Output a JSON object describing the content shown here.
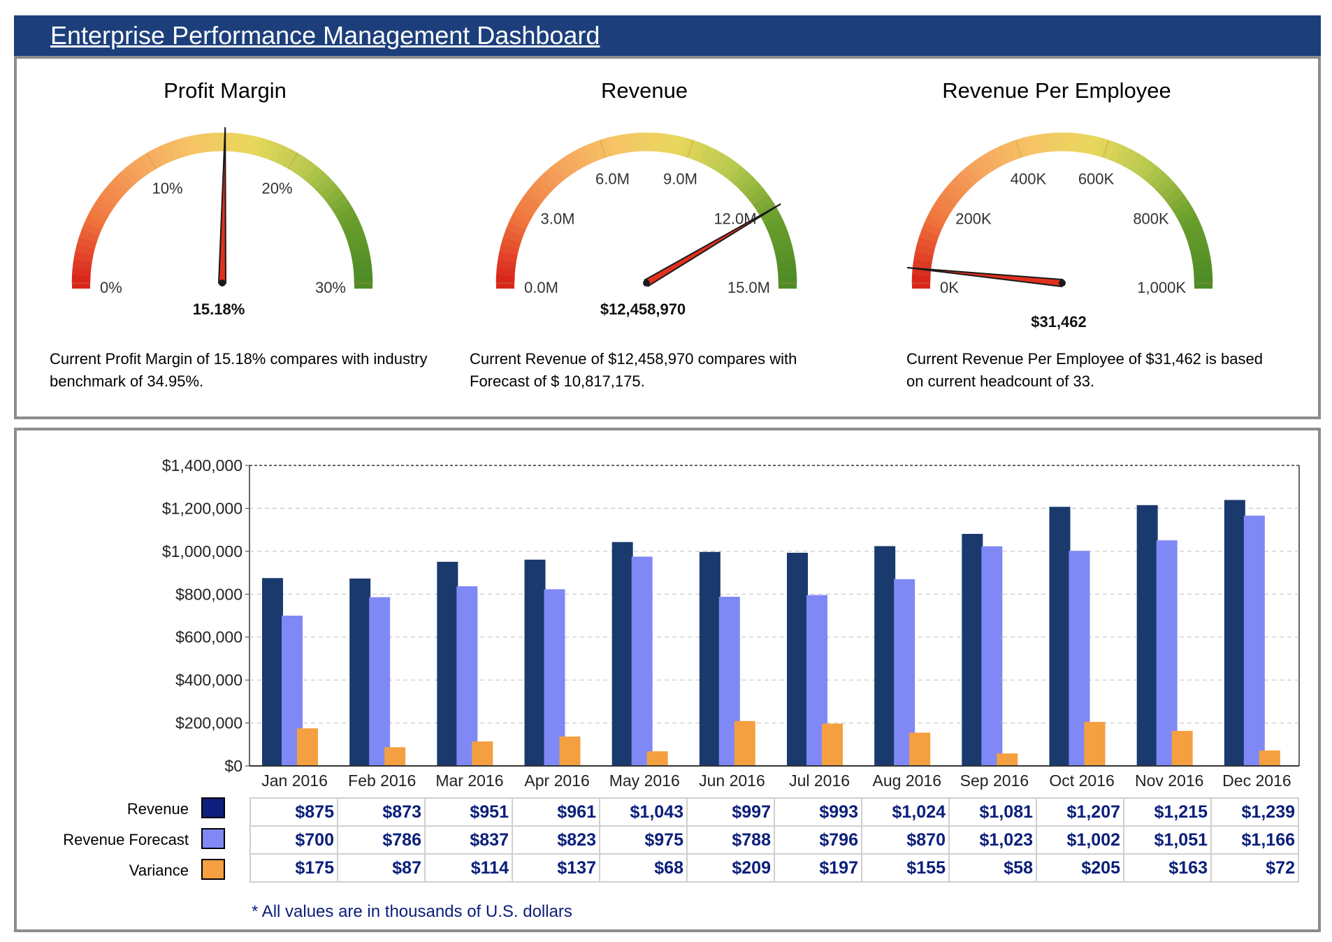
{
  "header": {
    "title": "Enterprise Performance Management Dashboard"
  },
  "gauges": [
    {
      "title": "Profit Margin",
      "min": 0,
      "max": 30,
      "value": 15.18,
      "ticks": [
        {
          "label": "0%",
          "value": 0
        },
        {
          "label": "10%",
          "value": 10
        },
        {
          "label": "20%",
          "value": 20
        },
        {
          "label": "30%",
          "value": 30
        }
      ],
      "value_label": "15.18%",
      "description": "Current Profit Margin of 15.18% compares with industry benchmark of 34.95%."
    },
    {
      "title": "Revenue",
      "min": 0,
      "max": 15000000,
      "value": 12458970,
      "ticks": [
        {
          "label": "0.0M",
          "value": 0
        },
        {
          "label": "3.0M",
          "value": 3000000
        },
        {
          "label": "6.0M",
          "value": 6000000
        },
        {
          "label": "9.0M",
          "value": 9000000
        },
        {
          "label": "12.0M",
          "value": 12000000
        },
        {
          "label": "15.0M",
          "value": 15000000
        }
      ],
      "value_label": "$12,458,970",
      "description": "Current Revenue of $12,458,970 compares with Forecast of $ 10,817,175."
    },
    {
      "title": "Revenue Per Employee",
      "min": 0,
      "max": 1000000,
      "value": 31462,
      "ticks": [
        {
          "label": "0K",
          "value": 0
        },
        {
          "label": "200K",
          "value": 200000
        },
        {
          "label": "400K",
          "value": 400000
        },
        {
          "label": "600K",
          "value": 600000
        },
        {
          "label": "800K",
          "value": 800000
        },
        {
          "label": "1,000K",
          "value": 1000000
        }
      ],
      "value_label": "$31,462",
      "description": "Current Revenue Per Employee of $31,462 is based on current headcount of 33."
    }
  ],
  "colors": {
    "revenue": "#1a3a6e",
    "forecast": "#8088f6",
    "variance": "#f4a040",
    "table_text": "#0b1e7a"
  },
  "chart_data": {
    "type": "bar",
    "categories": [
      "Jan 2016",
      "Feb 2016",
      "Mar 2016",
      "Apr 2016",
      "May 2016",
      "Jun 2016",
      "Jul 2016",
      "Aug 2016",
      "Sep 2016",
      "Oct 2016",
      "Nov 2016",
      "Dec 2016"
    ],
    "series": [
      {
        "name": "Revenue",
        "values": [
          875000,
          873000,
          951000,
          961000,
          1043000,
          997000,
          993000,
          1024000,
          1081000,
          1207000,
          1215000,
          1239000
        ]
      },
      {
        "name": "Revenue Forecast",
        "values": [
          700000,
          786000,
          837000,
          823000,
          975000,
          788000,
          796000,
          870000,
          1023000,
          1002000,
          1051000,
          1166000
        ]
      },
      {
        "name": "Variance",
        "values": [
          175000,
          87000,
          114000,
          137000,
          68000,
          209000,
          197000,
          155000,
          58000,
          205000,
          163000,
          72000
        ]
      }
    ],
    "ylim": [
      0,
      1400000
    ],
    "yticks": [
      "$0",
      "$200,000",
      "$400,000",
      "$600,000",
      "$800,000",
      "$1,000,000",
      "$1,200,000",
      "$1,400,000"
    ],
    "grid": true,
    "legend": "bottom-left table"
  },
  "table": {
    "rows": [
      {
        "label": "Revenue",
        "cells": [
          "$875",
          "$873",
          "$951",
          "$961",
          "$1,043",
          "$997",
          "$993",
          "$1,024",
          "$1,081",
          "$1,207",
          "$1,215",
          "$1,239"
        ]
      },
      {
        "label": "Revenue Forecast",
        "cells": [
          "$700",
          "$786",
          "$837",
          "$823",
          "$975",
          "$788",
          "$796",
          "$870",
          "$1,023",
          "$1,002",
          "$1,051",
          "$1,166"
        ]
      },
      {
        "label": "Variance",
        "cells": [
          "$175",
          "$87",
          "$114",
          "$137",
          "$68",
          "$209",
          "$197",
          "$155",
          "$58",
          "$205",
          "$163",
          "$72"
        ]
      }
    ]
  },
  "footnote": "* All values are in thousands of U.S. dollars"
}
